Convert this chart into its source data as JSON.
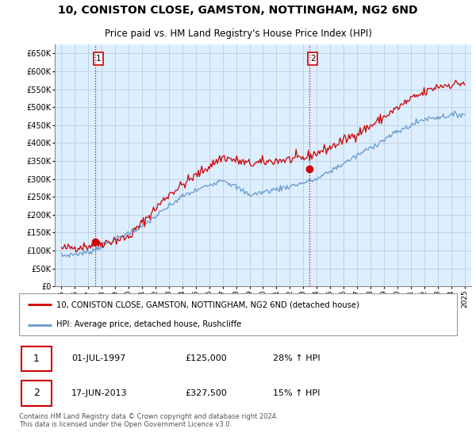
{
  "title": "10, CONISTON CLOSE, GAMSTON, NOTTINGHAM, NG2 6ND",
  "subtitle": "Price paid vs. HM Land Registry's House Price Index (HPI)",
  "ylabel_ticks": [
    "£0",
    "£50K",
    "£100K",
    "£150K",
    "£200K",
    "£250K",
    "£300K",
    "£350K",
    "£400K",
    "£450K",
    "£500K",
    "£550K",
    "£600K",
    "£650K"
  ],
  "ytick_values": [
    0,
    50000,
    100000,
    150000,
    200000,
    250000,
    300000,
    350000,
    400000,
    450000,
    500000,
    550000,
    600000,
    650000
  ],
  "xlim_start": 1994.5,
  "xlim_end": 2025.5,
  "ylim_min": 0,
  "ylim_max": 675000,
  "transaction1_date": 1997.5,
  "transaction1_price": 125000,
  "transaction2_date": 2013.45,
  "transaction2_price": 327500,
  "legend_line1": "10, CONISTON CLOSE, GAMSTON, NOTTINGHAM, NG2 6ND (detached house)",
  "legend_line2": "HPI: Average price, detached house, Rushcliffe",
  "annotation1_label": "1",
  "annotation1_date": "01-JUL-1997",
  "annotation1_price": "£125,000",
  "annotation1_hpi": "28% ↑ HPI",
  "annotation2_label": "2",
  "annotation2_date": "17-JUN-2013",
  "annotation2_price": "£327,500",
  "annotation2_hpi": "15% ↑ HPI",
  "footer": "Contains HM Land Registry data © Crown copyright and database right 2024.\nThis data is licensed under the Open Government Licence v3.0.",
  "line_color_red": "#cc0000",
  "line_color_blue": "#6699cc",
  "dot_color": "#cc0000",
  "dashed_color": "#cc0000",
  "grid_color": "#bbccdd",
  "bg_color": "#ddeeff",
  "plot_bg": "#ffffff",
  "title_fontsize": 10,
  "subtitle_fontsize": 8.5
}
